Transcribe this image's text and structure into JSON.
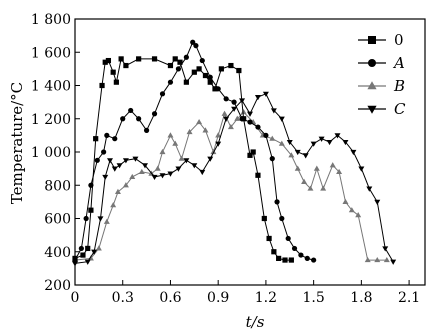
{
  "chart_data": {
    "type": "line",
    "xlabel": "t/s",
    "ylabel": "Temperature/°C",
    "xlim": [
      0,
      2.2
    ],
    "ylim": [
      200,
      1800
    ],
    "xticks": [
      0,
      0.3,
      0.6,
      0.9,
      1.2,
      1.5,
      1.8,
      2.1
    ],
    "xtick_labels": [
      "0",
      "0.3",
      "0.6",
      "0.9",
      "1.2",
      "1.5",
      "1.8",
      "2.1"
    ],
    "yticks": [
      200,
      400,
      600,
      800,
      1000,
      1200,
      1400,
      1600,
      1800
    ],
    "ytick_labels": [
      "200",
      "400",
      "600",
      "800",
      "1 000",
      "1 200",
      "1 400",
      "1 600",
      "1 800"
    ],
    "grid": false,
    "legend_position": "top-right",
    "series": [
      {
        "name": "0",
        "marker": "square",
        "color": "#000000",
        "x": [
          0.0,
          0.05,
          0.08,
          0.1,
          0.13,
          0.17,
          0.19,
          0.21,
          0.24,
          0.26,
          0.29,
          0.32,
          0.4,
          0.5,
          0.6,
          0.63,
          0.66,
          0.7,
          0.75,
          0.78,
          0.82,
          0.85,
          0.88,
          0.92,
          0.98,
          1.03,
          1.06,
          1.1,
          1.12,
          1.15,
          1.19,
          1.22,
          1.25,
          1.28,
          1.32,
          1.36
        ],
        "y": [
          360,
          380,
          420,
          650,
          1080,
          1400,
          1540,
          1550,
          1480,
          1420,
          1560,
          1520,
          1560,
          1560,
          1520,
          1560,
          1540,
          1420,
          1480,
          1500,
          1460,
          1420,
          1380,
          1500,
          1520,
          1490,
          1200,
          980,
          1000,
          860,
          600,
          480,
          400,
          360,
          350,
          350
        ]
      },
      {
        "name": "A",
        "marker": "circle",
        "color": "#000000",
        "x": [
          0.0,
          0.04,
          0.07,
          0.1,
          0.14,
          0.18,
          0.2,
          0.25,
          0.3,
          0.35,
          0.4,
          0.45,
          0.5,
          0.55,
          0.6,
          0.65,
          0.7,
          0.74,
          0.76,
          0.8,
          0.85,
          0.9,
          0.95,
          1.0,
          1.05,
          1.1,
          1.15,
          1.2,
          1.24,
          1.27,
          1.3,
          1.34,
          1.38,
          1.42,
          1.46,
          1.5
        ],
        "y": [
          350,
          420,
          600,
          800,
          950,
          1000,
          1100,
          1080,
          1200,
          1250,
          1200,
          1130,
          1230,
          1350,
          1420,
          1500,
          1570,
          1660,
          1640,
          1550,
          1450,
          1380,
          1320,
          1300,
          1200,
          1180,
          1150,
          1100,
          960,
          700,
          600,
          480,
          420,
          380,
          360,
          350
        ]
      },
      {
        "name": "B",
        "marker": "triangle-up",
        "color": "#777777",
        "x": [
          0.0,
          0.1,
          0.15,
          0.2,
          0.24,
          0.27,
          0.32,
          0.36,
          0.42,
          0.48,
          0.52,
          0.55,
          0.6,
          0.63,
          0.67,
          0.72,
          0.78,
          0.82,
          0.87,
          0.9,
          0.94,
          0.98,
          1.02,
          1.06,
          1.12,
          1.18,
          1.24,
          1.3,
          1.36,
          1.4,
          1.44,
          1.48,
          1.52,
          1.56,
          1.62,
          1.66,
          1.7,
          1.74,
          1.78,
          1.84,
          1.9,
          1.96
        ],
        "y": [
          350,
          360,
          420,
          580,
          680,
          760,
          800,
          850,
          880,
          870,
          900,
          1000,
          1100,
          1050,
          960,
          1120,
          1180,
          1130,
          1000,
          1100,
          1230,
          1150,
          1200,
          1240,
          1180,
          1100,
          1080,
          1050,
          980,
          900,
          820,
          780,
          900,
          780,
          920,
          880,
          700,
          650,
          620,
          350,
          350,
          350
        ]
      },
      {
        "name": "C",
        "marker": "triangle-down",
        "color": "#000000",
        "x": [
          0.0,
          0.08,
          0.12,
          0.16,
          0.19,
          0.22,
          0.25,
          0.28,
          0.32,
          0.38,
          0.44,
          0.5,
          0.55,
          0.6,
          0.65,
          0.7,
          0.75,
          0.8,
          0.85,
          0.9,
          0.95,
          1.0,
          1.05,
          1.1,
          1.15,
          1.2,
          1.25,
          1.3,
          1.35,
          1.4,
          1.45,
          1.5,
          1.55,
          1.6,
          1.65,
          1.7,
          1.75,
          1.8,
          1.85,
          1.9,
          1.95,
          2.0
        ],
        "y": [
          330,
          340,
          400,
          600,
          850,
          950,
          900,
          920,
          950,
          960,
          920,
          850,
          860,
          870,
          900,
          950,
          920,
          880,
          960,
          1050,
          1200,
          1260,
          1310,
          1230,
          1330,
          1350,
          1250,
          1200,
          1060,
          1000,
          980,
          1050,
          1080,
          1060,
          1100,
          1060,
          1000,
          900,
          780,
          700,
          420,
          340
        ]
      }
    ]
  }
}
